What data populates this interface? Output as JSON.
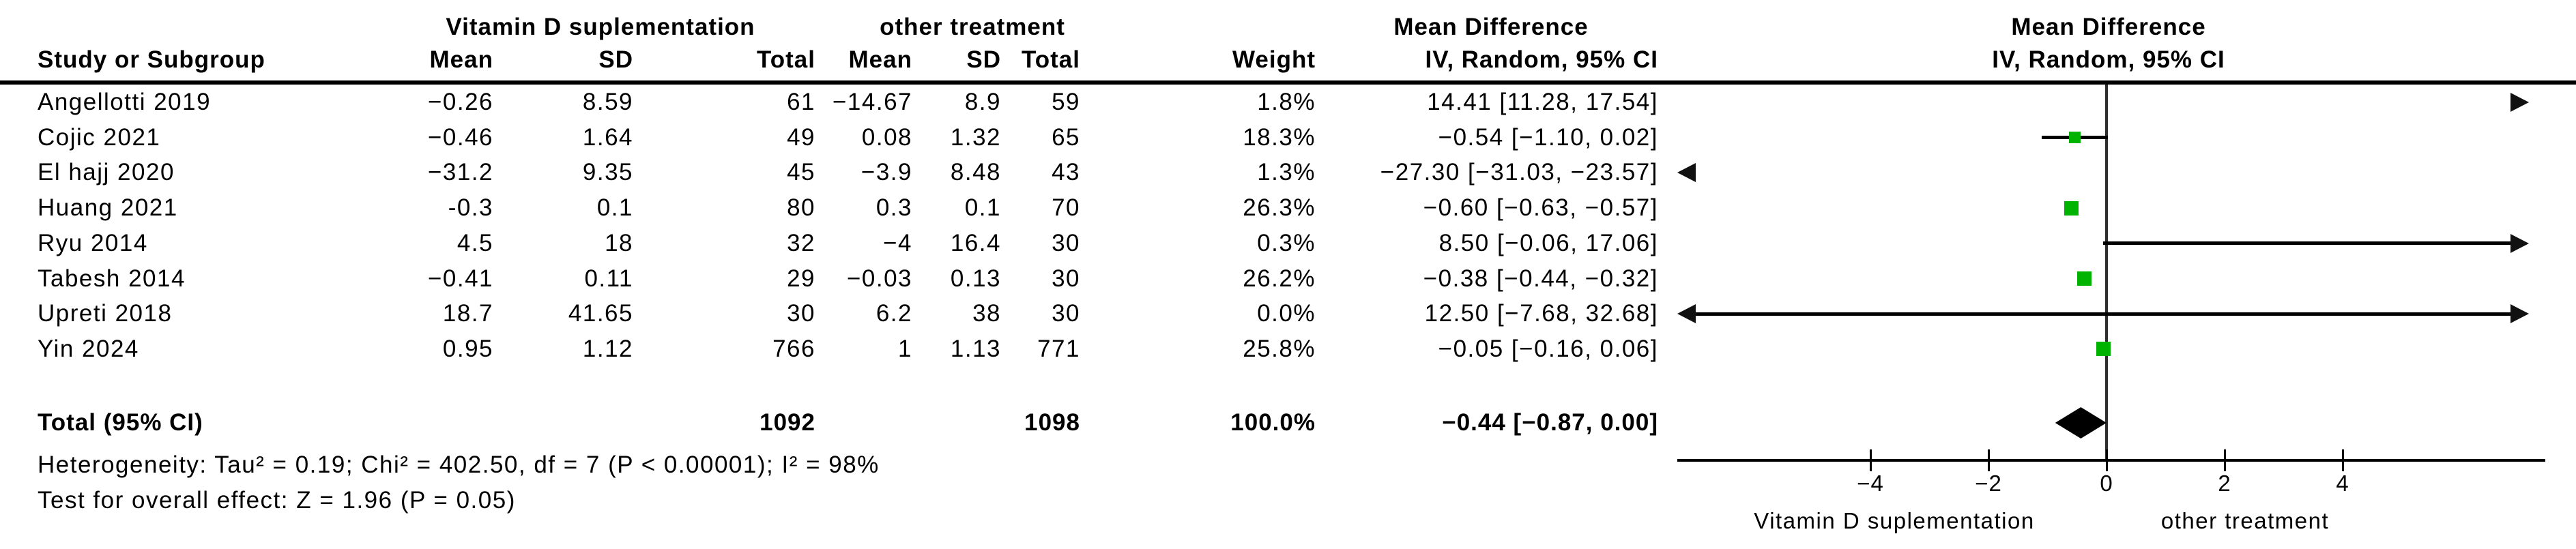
{
  "table": {
    "group1_header": "Vitamin D suplementation",
    "group2_header": "other treatment",
    "effect_header": "Mean Difference",
    "effect_subheader": "IV, Random, 95% CI",
    "plot_header": "Mean Difference",
    "plot_subheader": "IV, Random, 95% CI",
    "columns": {
      "study": "Study or Subgroup",
      "mean": "Mean",
      "sd": "SD",
      "total": "Total",
      "weight": "Weight"
    },
    "rows": [
      {
        "study": "Angellotti 2019",
        "mean1": "−0.26",
        "sd1": "8.59",
        "total1": "61",
        "mean2": "−14.67",
        "sd2": "8.9",
        "total2": "59",
        "weight": "1.8%",
        "ci_text": "14.41 [11.28, 17.54]"
      },
      {
        "study": "Cojic 2021",
        "mean1": "−0.46",
        "sd1": "1.64",
        "total1": "49",
        "mean2": "0.08",
        "sd2": "1.32",
        "total2": "65",
        "weight": "18.3%",
        "ci_text": "−0.54 [−1.10, 0.02]"
      },
      {
        "study": "El hajj 2020",
        "mean1": "−31.2",
        "sd1": "9.35",
        "total1": "45",
        "mean2": "−3.9",
        "sd2": "8.48",
        "total2": "43",
        "weight": "1.3%",
        "ci_text": "−27.30 [−31.03, −23.57]"
      },
      {
        "study": "Huang 2021",
        "mean1": "-0.3",
        "sd1": "0.1",
        "total1": "80",
        "mean2": "0.3",
        "sd2": "0.1",
        "total2": "70",
        "weight": "26.3%",
        "ci_text": "−0.60 [−0.63, −0.57]"
      },
      {
        "study": "Ryu 2014",
        "mean1": "4.5",
        "sd1": "18",
        "total1": "32",
        "mean2": "−4",
        "sd2": "16.4",
        "total2": "30",
        "weight": "0.3%",
        "ci_text": "8.50 [−0.06, 17.06]"
      },
      {
        "study": "Tabesh 2014",
        "mean1": "−0.41",
        "sd1": "0.11",
        "total1": "29",
        "mean2": "−0.03",
        "sd2": "0.13",
        "total2": "30",
        "weight": "26.2%",
        "ci_text": "−0.38 [−0.44, −0.32]"
      },
      {
        "study": "Upreti 2018",
        "mean1": "18.7",
        "sd1": "41.65",
        "total1": "30",
        "mean2": "6.2",
        "sd2": "38",
        "total2": "30",
        "weight": "0.0%",
        "ci_text": "12.50 [−7.68, 32.68]"
      },
      {
        "study": "Yin 2024",
        "mean1": "0.95",
        "sd1": "1.12",
        "total1": "766",
        "mean2": "1",
        "sd2": "1.13",
        "total2": "771",
        "weight": "25.8%",
        "ci_text": "−0.05 [−0.16, 0.06]"
      }
    ],
    "total_row": {
      "label": "Total (95% CI)",
      "total1": "1092",
      "total2": "1098",
      "weight": "100.0%",
      "ci_text": "−0.44 [−0.87, 0.00]"
    },
    "footnotes": {
      "heterogeneity": "Heterogeneity: Tau² = 0.19; Chi² = 402.50, df = 7 (P < 0.00001); I² = 98%",
      "overall_effect": "Test for overall effect: Z = 1.96 (P = 0.05)"
    }
  },
  "chart_data": {
    "type": "forest",
    "effect_measure": "Mean Difference, IV, Random, 95% CI",
    "x_ticks": [
      -4,
      -2,
      0,
      2,
      4
    ],
    "x_tick_labels": [
      "−4",
      "−2",
      "0",
      "2",
      "4"
    ],
    "xlim": [
      -7,
      7
    ],
    "grid": false,
    "axis_label_left": "Vitamin D suplementation",
    "axis_label_right": "other treatment",
    "marker_color": "#00b300",
    "studies": [
      {
        "name": "Angellotti 2019",
        "md": 14.41,
        "lo": 11.28,
        "hi": 17.54,
        "weight_pct": 1.8
      },
      {
        "name": "Cojic 2021",
        "md": -0.54,
        "lo": -1.1,
        "hi": 0.02,
        "weight_pct": 18.3
      },
      {
        "name": "El hajj 2020",
        "md": -27.3,
        "lo": -31.03,
        "hi": -23.57,
        "weight_pct": 1.3
      },
      {
        "name": "Huang 2021",
        "md": -0.6,
        "lo": -0.63,
        "hi": -0.57,
        "weight_pct": 26.3
      },
      {
        "name": "Ryu 2014",
        "md": 8.5,
        "lo": -0.06,
        "hi": 17.06,
        "weight_pct": 0.3
      },
      {
        "name": "Tabesh 2014",
        "md": -0.38,
        "lo": -0.44,
        "hi": -0.32,
        "weight_pct": 26.2
      },
      {
        "name": "Upreti 2018",
        "md": 12.5,
        "lo": -7.68,
        "hi": 32.68,
        "weight_pct": 0.0
      },
      {
        "name": "Yin 2024",
        "md": -0.05,
        "lo": -0.16,
        "hi": 0.06,
        "weight_pct": 25.8
      }
    ],
    "total": {
      "name": "Total (95% CI)",
      "md": -0.44,
      "lo": -0.87,
      "hi": 0.0
    }
  }
}
